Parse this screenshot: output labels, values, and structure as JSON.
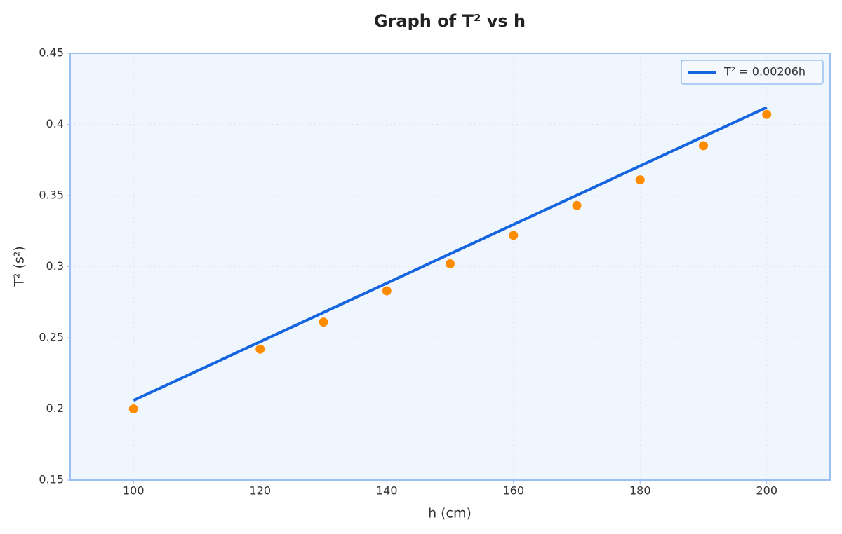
{
  "chart_data": {
    "type": "scatter",
    "title": "Graph of T² vs h",
    "xlabel": "h (cm)",
    "ylabel": "T² (s²)",
    "xlim": [
      90,
      210
    ],
    "xticks": [
      100,
      120,
      140,
      160,
      180,
      200
    ],
    "ylim": [
      0.15,
      0.45
    ],
    "yticks": [
      0.15,
      0.2,
      0.25,
      0.3,
      0.35,
      0.4,
      0.45
    ],
    "grid": true,
    "legend": "upper right",
    "series": [
      {
        "type": "scatter",
        "color": "#ff8c00",
        "x": [
          100,
          120,
          130,
          140,
          150,
          160,
          170,
          180,
          190,
          200
        ],
        "values": [
          0.2,
          0.242,
          0.261,
          0.283,
          0.302,
          0.322,
          0.343,
          0.361,
          0.385,
          0.407
        ]
      },
      {
        "type": "line",
        "name": "T² = 0.00206h",
        "color": "#1565e0",
        "x": [
          100,
          200
        ],
        "values": [
          0.206,
          0.412
        ]
      }
    ]
  }
}
